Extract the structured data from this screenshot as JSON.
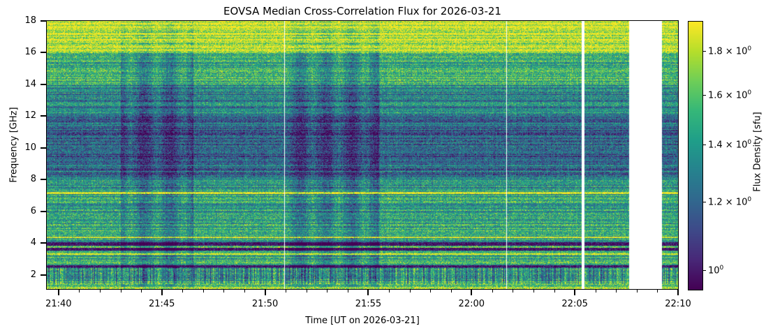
{
  "chart_data": {
    "type": "heatmap",
    "title": "EOVSA Median Cross-Correlation Flux for 2026-03-21",
    "xlabel": "Time [UT on 2026-03-21]",
    "ylabel": "Frequency [GHz]",
    "colorbar_label": "Flux Density [sfu]",
    "colormap": "viridis",
    "color_scale": "log",
    "clim": [
      0.95,
      1.95
    ],
    "xlim_minutes_after_2130": [
      9.43,
      40.0
    ],
    "ylim": [
      1.1,
      18
    ],
    "x_ticks": [
      "21:40",
      "21:45",
      "21:50",
      "21:55",
      "22:00",
      "22:05",
      "22:10"
    ],
    "x_tick_minutes": [
      10,
      15,
      20,
      25,
      30,
      35,
      40
    ],
    "y_ticks": [
      "2",
      "4",
      "6",
      "8",
      "10",
      "12",
      "14",
      "16",
      "18"
    ],
    "y_tick_values": [
      2,
      4,
      6,
      8,
      10,
      12,
      14,
      16,
      18
    ],
    "cb_ticks": [
      {
        "v": 1.8,
        "m": "1.8 × 10",
        "e": "0"
      },
      {
        "v": 1.6,
        "m": "1.6 × 10",
        "e": "0"
      },
      {
        "v": 1.4,
        "m": "1.4 × 10",
        "e": "0"
      },
      {
        "v": 1.2,
        "m": "1.2 × 10",
        "e": "0"
      },
      {
        "v": 1.0,
        "m": "10",
        "e": "0"
      }
    ],
    "data_gaps_minutes": [
      [
        35.3,
        35.45
      ],
      [
        37.6,
        39.2
      ]
    ],
    "dark_bands_ghz": [
      2.5,
      3.6,
      3.9
    ],
    "enhanced_low_flux_periods_minutes": [
      [
        13,
        16.5
      ],
      [
        21,
        25.5
      ]
    ]
  }
}
